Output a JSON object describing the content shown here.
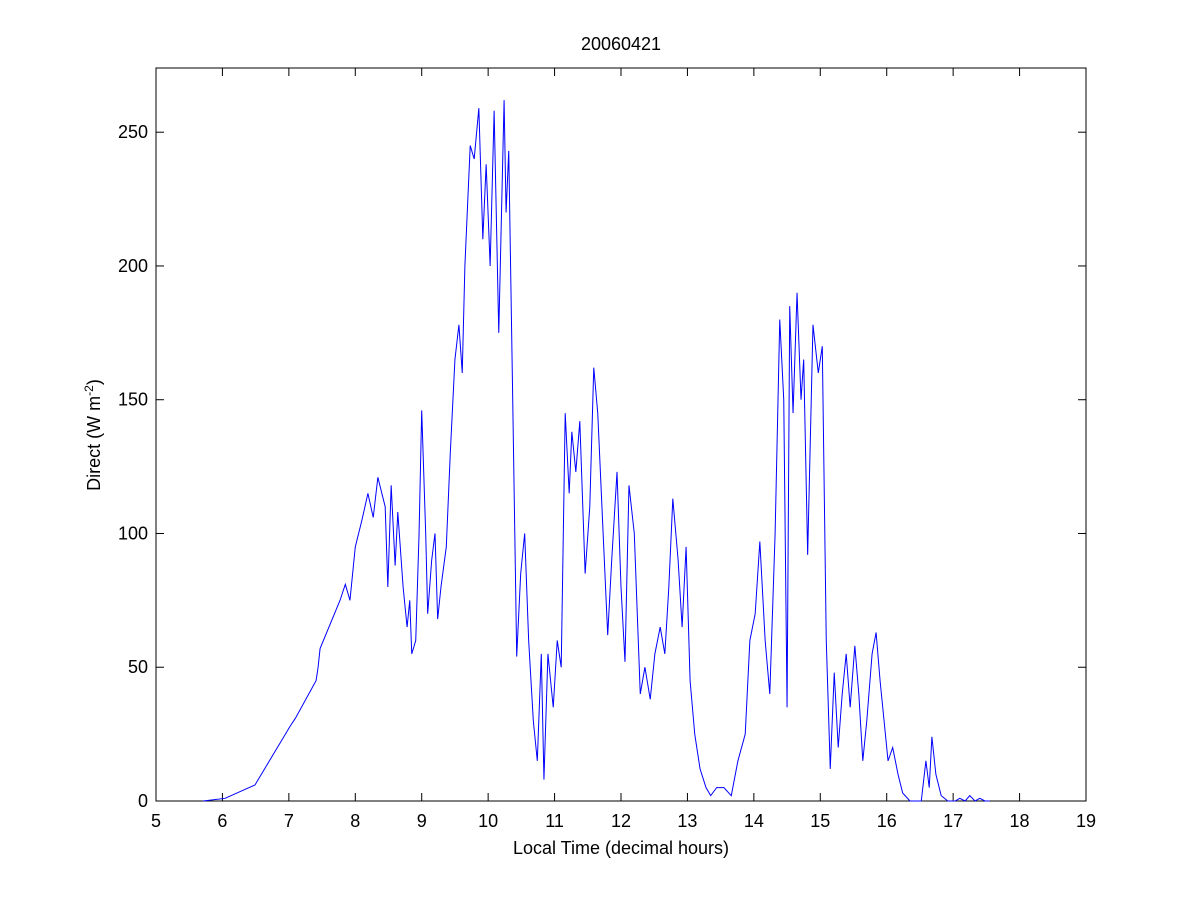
{
  "chart_data": {
    "type": "line",
    "title": "20060421",
    "x_label": "Local Time (decimal hours)",
    "y_label": [
      "Direct (W m",
      "-2",
      ")"
    ],
    "x": [
      5.71,
      6.04,
      6.49,
      7.02,
      7.1,
      7.41,
      7.44,
      7.47,
      7.77,
      7.85,
      7.92,
      8.0,
      8.1,
      8.19,
      8.27,
      8.34,
      8.45,
      8.49,
      8.54,
      8.6,
      8.64,
      8.72,
      8.78,
      8.82,
      8.85,
      8.91,
      8.96,
      9.0,
      9.06,
      9.09,
      9.15,
      9.2,
      9.24,
      9.29,
      9.37,
      9.43,
      9.5,
      9.56,
      9.61,
      9.65,
      9.73,
      9.79,
      9.86,
      9.92,
      9.97,
      10.03,
      10.09,
      10.16,
      10.24,
      10.27,
      10.31,
      10.37,
      10.43,
      10.49,
      10.55,
      10.61,
      10.68,
      10.74,
      10.8,
      10.84,
      10.9,
      10.98,
      11.04,
      11.1,
      11.16,
      11.22,
      11.26,
      11.32,
      11.38,
      11.46,
      11.53,
      11.59,
      11.65,
      11.74,
      11.8,
      11.86,
      11.94,
      12.0,
      12.06,
      12.12,
      12.2,
      12.29,
      12.36,
      12.44,
      12.51,
      12.59,
      12.66,
      12.72,
      12.78,
      12.86,
      12.92,
      12.98,
      13.04,
      13.11,
      13.19,
      13.28,
      13.35,
      13.44,
      13.55,
      13.66,
      13.76,
      13.87,
      13.94,
      14.02,
      14.09,
      14.17,
      14.24,
      14.32,
      14.39,
      14.45,
      14.5,
      14.54,
      14.59,
      14.65,
      14.71,
      14.75,
      14.81,
      14.89,
      14.97,
      15.03,
      15.09,
      15.15,
      15.21,
      15.27,
      15.33,
      15.39,
      15.45,
      15.52,
      15.58,
      15.64,
      15.7,
      15.78,
      15.84,
      15.9,
      15.96,
      16.02,
      16.09,
      16.17,
      16.24,
      16.35,
      16.52,
      16.59,
      16.64,
      16.68,
      16.74,
      16.82,
      16.92,
      17.03,
      17.1,
      17.18,
      17.25,
      17.33,
      17.4,
      17.48,
      17.55
    ],
    "series": [
      {
        "color": "#0000ff",
        "values": [
          0,
          1,
          6,
          28,
          31,
          45,
          50,
          57,
          75,
          81,
          75,
          95,
          105,
          115,
          106,
          121,
          110,
          80,
          118,
          88,
          108,
          80,
          65,
          75,
          55,
          60,
          100,
          146,
          100,
          70,
          90,
          100,
          68,
          80,
          95,
          130,
          165,
          178,
          160,
          200,
          245,
          240,
          259,
          210,
          238,
          200,
          258,
          175,
          262,
          220,
          243,
          150,
          54,
          85,
          100,
          60,
          30,
          15,
          55,
          8,
          55,
          35,
          60,
          50,
          145,
          115,
          138,
          123,
          142,
          85,
          110,
          162,
          145,
          95,
          62,
          90,
          123,
          80,
          52,
          118,
          100,
          40,
          50,
          38,
          55,
          65,
          55,
          80,
          113,
          90,
          65,
          95,
          45,
          25,
          12,
          5,
          2,
          5,
          5,
          2,
          15,
          25,
          60,
          70,
          97,
          60,
          40,
          100,
          180,
          150,
          35,
          185,
          145,
          190,
          150,
          165,
          92,
          178,
          160,
          170,
          60,
          12,
          48,
          20,
          40,
          55,
          35,
          58,
          40,
          15,
          30,
          55,
          63,
          45,
          30,
          15,
          20,
          10,
          3,
          0,
          0,
          15,
          5,
          24,
          10,
          2,
          0,
          0,
          1,
          0,
          2,
          0,
          1,
          0,
          0
        ]
      }
    ],
    "xlim": [
      5,
      19
    ],
    "xticks": [
      5,
      6,
      7,
      8,
      9,
      10,
      11,
      12,
      13,
      14,
      15,
      16,
      17,
      18,
      19
    ],
    "ylim": [
      0,
      274
    ],
    "yticks": [
      0,
      50,
      100,
      150,
      200,
      250
    ],
    "grid": false
  }
}
